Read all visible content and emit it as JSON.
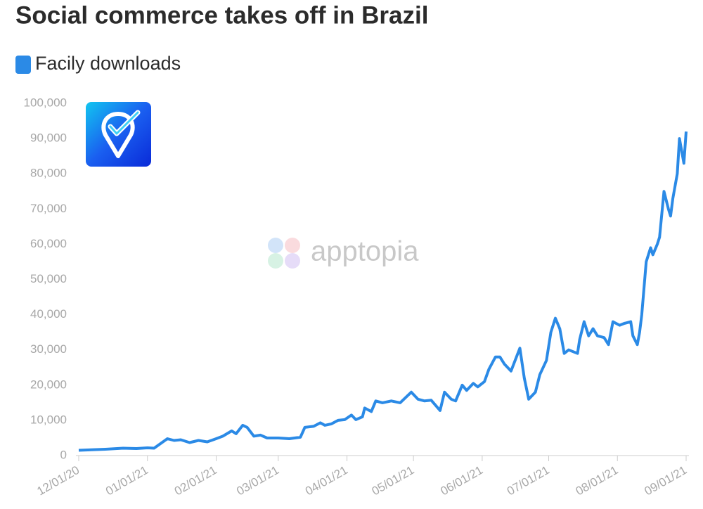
{
  "chart_data": {
    "type": "line",
    "title": "Social commerce takes off in Brazil",
    "watermark": "apptopia",
    "x": [
      "12/01/20",
      "12/13/20",
      "12/21/20",
      "12/27/20",
      "01/01/21",
      "01/04/21",
      "01/06/21",
      "01/10/21",
      "01/13/21",
      "01/16/21",
      "01/20/21",
      "01/24/21",
      "01/28/21",
      "02/01/21",
      "02/04/21",
      "02/08/21",
      "02/10/21",
      "02/13/21",
      "02/15/21",
      "02/18/21",
      "02/21/21",
      "02/24/21",
      "03/01/21",
      "03/06/21",
      "03/11/21",
      "03/13/21",
      "03/17/21",
      "03/20/21",
      "03/22/21",
      "03/25/21",
      "03/28/21",
      "03/31/21",
      "04/03/21",
      "04/05/21",
      "04/08/21",
      "04/09/21",
      "04/12/21",
      "04/14/21",
      "04/17/21",
      "04/21/21",
      "04/25/21",
      "04/30/21",
      "05/03/21",
      "05/06/21",
      "05/09/21",
      "05/13/21",
      "05/15/21",
      "05/18/21",
      "05/20/21",
      "05/23/21",
      "05/25/21",
      "05/28/21",
      "05/30/21",
      "06/02/21",
      "06/04/21",
      "06/07/21",
      "06/09/21",
      "06/11/21",
      "06/14/21",
      "06/18/21",
      "06/20/21",
      "06/22/21",
      "06/25/21",
      "06/27/21",
      "06/30/21",
      "07/02/21",
      "07/04/21",
      "07/06/21",
      "07/08/21",
      "07/10/21",
      "07/12/21",
      "07/14/21",
      "07/15/21",
      "07/17/21",
      "07/19/21",
      "07/21/21",
      "07/23/21",
      "07/26/21",
      "07/28/21",
      "07/30/21",
      "08/02/21",
      "08/04/21",
      "08/07/21",
      "08/08/21",
      "08/10/21",
      "08/11/21",
      "08/12/21",
      "08/14/21",
      "08/16/21",
      "08/17/21",
      "08/19/21",
      "08/20/21",
      "08/22/21",
      "08/24/21",
      "08/25/21",
      "08/26/21",
      "08/28/21",
      "08/29/21",
      "08/31/21",
      "09/01/21"
    ],
    "series": [
      {
        "name": "Facily downloads",
        "color": "#2b8ae6",
        "values": [
          1500,
          1800,
          2100,
          2000,
          2200,
          2100,
          3000,
          4800,
          4300,
          4500,
          3700,
          4300,
          3900,
          4800,
          5500,
          7000,
          6200,
          8600,
          8000,
          5500,
          5800,
          5000,
          5000,
          4800,
          5200,
          8000,
          8300,
          9300,
          8600,
          9000,
          10000,
          10200,
          11500,
          10200,
          11000,
          13500,
          12500,
          15500,
          15000,
          15500,
          15000,
          18000,
          16000,
          15500,
          15700,
          12800,
          18000,
          16000,
          15500,
          20000,
          18500,
          20500,
          19500,
          21000,
          24500,
          28000,
          28000,
          26000,
          24000,
          30500,
          22000,
          16000,
          18000,
          23000,
          27000,
          35000,
          39000,
          36000,
          29000,
          30000,
          29500,
          29000,
          33000,
          38000,
          34000,
          36000,
          34000,
          33500,
          31500,
          38000,
          37000,
          37500,
          38000,
          34000,
          31500,
          35000,
          40000,
          55000,
          59000,
          57000,
          60000,
          62000,
          75000,
          70000,
          68000,
          73000,
          80000,
          90000,
          83000,
          92000
        ]
      }
    ],
    "xlim": [
      "12/01/20",
      "09/01/21"
    ],
    "xticks": [
      "12/01/20",
      "01/01/21",
      "02/01/21",
      "03/01/21",
      "04/01/21",
      "05/01/21",
      "06/01/21",
      "07/01/21",
      "08/01/21",
      "09/01/21"
    ],
    "ylim": [
      0,
      100000
    ],
    "yticks": [
      0,
      {
        "value": 10000,
        "label": "10,000"
      },
      {
        "value": 20000,
        "label": "20,000"
      },
      {
        "value": 30000,
        "label": "30,000"
      },
      {
        "value": 40000,
        "label": "40,000"
      },
      {
        "value": 50000,
        "label": "50,000"
      },
      {
        "value": 60000,
        "label": "60,000"
      },
      {
        "value": 70000,
        "label": "70,000"
      },
      {
        "value": 80000,
        "label": "80,000"
      },
      {
        "value": 90000,
        "label": "90,000"
      },
      {
        "value": 100000,
        "label": "100,000"
      }
    ],
    "grid": false
  }
}
